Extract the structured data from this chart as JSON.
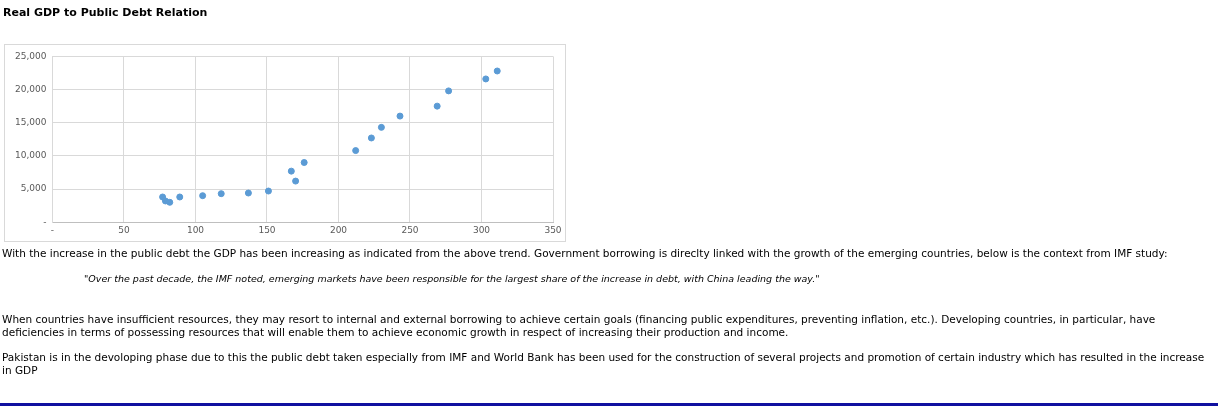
{
  "chart_data": {
    "type": "scatter",
    "title": "Real GDP to Public Debt Relation",
    "x": [
      77,
      79,
      82,
      89,
      105,
      118,
      137,
      151,
      167,
      170,
      176,
      212,
      223,
      230,
      243,
      269,
      277,
      303,
      311
    ],
    "values": [
      3800,
      3200,
      3000,
      3800,
      4000,
      4300,
      4400,
      4700,
      7700,
      6200,
      9000,
      10800,
      12700,
      14300,
      16000,
      17500,
      19800,
      21600,
      22800
    ],
    "color": "#5b9bd5",
    "marker": "circle",
    "grid": true,
    "legend": false,
    "xlim": [
      0,
      350
    ],
    "xticks": [
      {
        "value": 0,
        "label": "-"
      },
      50,
      100,
      150,
      200,
      250,
      300,
      350
    ],
    "ylim": [
      0,
      25000
    ],
    "yticks": [
      {
        "value": 0,
        "label": "-"
      },
      {
        "value": 5000,
        "label": "5,000"
      },
      {
        "value": 10000,
        "label": "10,000"
      },
      {
        "value": 15000,
        "label": "15,000"
      },
      {
        "value": 20000,
        "label": "20,000"
      },
      {
        "value": 25000,
        "label": "25,000"
      }
    ],
    "annotations": [
      "With the increase in the public debt the GDP has been increasing as indicated from the above trend. Government borrowing is direclty linked with the growth of the emerging countries, below is the context from IMF study:",
      "\"Over the past decade, the IMF noted, emerging markets have been responsible for the largest share of the increase in debt, with China leading the way.\"",
      "When countries have insufficient resources, they may resort to internal and external borrowing to achieve certain goals (financing public expenditures, preventing inflation, etc.). Developing countries, in particular, have deficiencies in terms of possessing resources that will enable them to achieve economic growth in respect of increasing their production and income.",
      "Pakistan is in the devoloping phase due to this the public debt taken especially from IMF and World Bank has been used for the construction of several projects and promotion of certain industry which has resulted in the increase in GDP"
    ]
  }
}
